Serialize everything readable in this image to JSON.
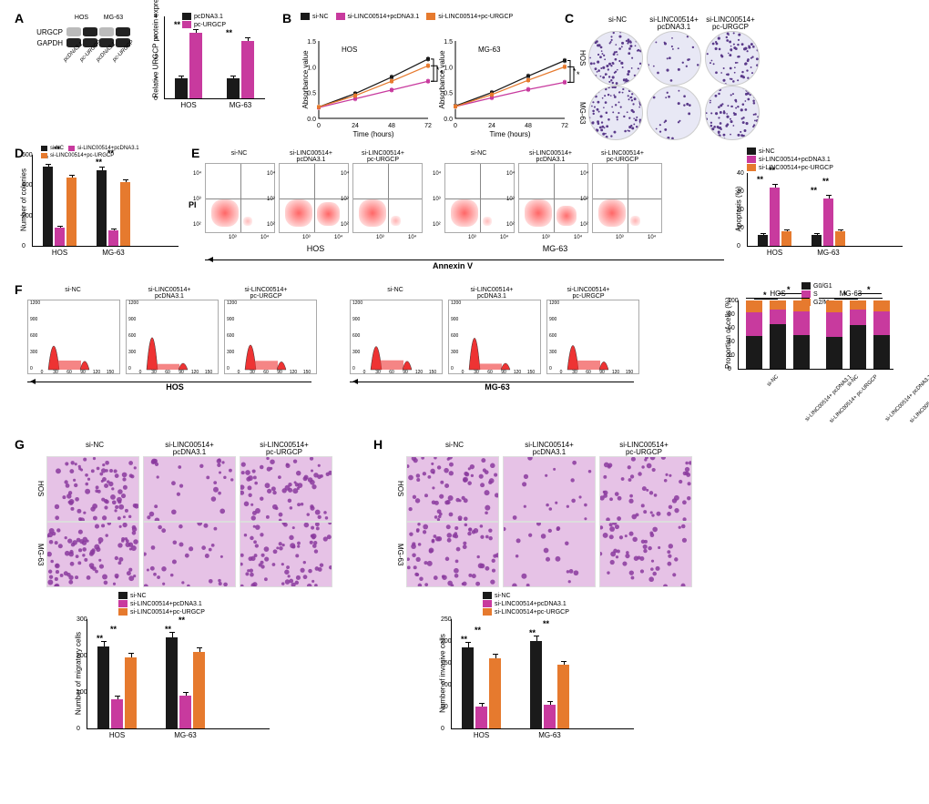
{
  "colors": {
    "siNC": "#1a1a1a",
    "siLINC_pcDNA": "#c83a9e",
    "siLINC_pcURGCP": "#e67a2e",
    "pcDNA31": "#1a1a1a",
    "pcURGCP": "#c83a9e",
    "G0G1": "#1a1a1a",
    "S": "#c83a9e",
    "G2M": "#e67a2e",
    "facs_dots": "#d04040",
    "cellcycle_fill": "#ee3333",
    "well_bg": "#e8e8f5",
    "migration_bg": "#e6c2e6"
  },
  "panels": {
    "A": {
      "blot": {
        "proteins": [
          "URGCP",
          "GAPDH"
        ],
        "cellLines": [
          "HOS",
          "MG-63"
        ],
        "conditions": [
          "pcDNA3.1",
          "pc-URGCP",
          "pcDNA3.1",
          "pc-URGCP"
        ]
      },
      "barchart": {
        "ylabel": "Relative URGCP protein expression",
        "ymax": 4,
        "yticks": [
          0,
          1,
          2,
          3,
          4
        ],
        "groups": [
          "HOS",
          "MG-63"
        ],
        "series": [
          {
            "name": "pcDNA3.1",
            "colorKey": "pcDNA31",
            "values": [
              1.0,
              1.0
            ],
            "err": [
              0.1,
              0.1
            ]
          },
          {
            "name": "pc-URGCP",
            "colorKey": "pcURGCP",
            "values": [
              3.2,
              2.8
            ],
            "err": [
              0.2,
              0.2
            ]
          }
        ],
        "sig": [
          "**",
          "**"
        ]
      }
    },
    "B": {
      "ylabel": "Absorbance value",
      "xlabel": "Time (hours)",
      "xticks": [
        0,
        24,
        48,
        72
      ],
      "ymax": 1.5,
      "yticks": [
        0,
        0.5,
        1.0,
        1.5
      ],
      "cellLines": [
        "HOS",
        "MG-63"
      ],
      "series": [
        {
          "name": "si-NC",
          "colorKey": "siNC",
          "values_HOS": [
            0.22,
            0.48,
            0.8,
            1.15
          ],
          "values_MG63": [
            0.24,
            0.5,
            0.82,
            1.12
          ]
        },
        {
          "name": "si-LINC00514+pcDNA3.1",
          "colorKey": "siLINC_pcDNA",
          "values_HOS": [
            0.21,
            0.38,
            0.55,
            0.72
          ],
          "values_MG63": [
            0.23,
            0.4,
            0.56,
            0.7
          ]
        },
        {
          "name": "si-LINC00514+pc-URGCP",
          "colorKey": "siLINC_pcURGCP",
          "values_HOS": [
            0.22,
            0.44,
            0.72,
            1.02
          ],
          "values_MG63": [
            0.23,
            0.46,
            0.74,
            1.0
          ]
        }
      ],
      "sig": [
        "*",
        "*"
      ]
    },
    "C": {
      "headers": [
        "si-NC",
        "si-LINC00514+\npcDNA3.1",
        "si-LINC00514+\npc-URGCP"
      ],
      "rows": [
        "HOS",
        "MG-63"
      ],
      "density": [
        [
          520,
          120,
          450
        ],
        [
          500,
          100,
          420
        ]
      ]
    },
    "D": {
      "ylabel": "Number of colonies",
      "ymax": 600,
      "yticks": [
        0,
        200,
        400,
        600
      ],
      "groups": [
        "HOS",
        "MG-63"
      ],
      "series": [
        {
          "name": "si-NC",
          "colorKey": "siNC",
          "values": [
            520,
            500
          ],
          "err": [
            20,
            20
          ]
        },
        {
          "name": "si-LINC00514+pcDNA3.1",
          "colorKey": "siLINC_pcDNA",
          "values": [
            120,
            100
          ],
          "err": [
            15,
            15
          ]
        },
        {
          "name": "si-LINC00514+pc-URGCP",
          "colorKey": "siLINC_pcURGCP",
          "values": [
            450,
            420
          ],
          "err": [
            20,
            20
          ]
        }
      ],
      "sig": [
        "**",
        "**",
        "**",
        "**"
      ]
    },
    "E": {
      "headers": [
        "si-NC",
        "si-LINC00514+\npcDNA3.1",
        "si-LINC00514+\npc-URGCP"
      ],
      "cellLines": [
        "HOS",
        "MG-63"
      ],
      "xlabel": "Annexin V",
      "ylabel_short": "PI",
      "barchart": {
        "ylabel": "Apoptosis (%)",
        "ymax": 40,
        "yticks": [
          0,
          10,
          20,
          30,
          40
        ],
        "groups": [
          "HOS",
          "MG-63"
        ],
        "series": [
          {
            "name": "si-NC",
            "colorKey": "siNC",
            "values": [
              6,
              6
            ],
            "err": [
              1,
              1
            ]
          },
          {
            "name": "si-LINC00514+pcDNA3.1",
            "colorKey": "siLINC_pcDNA",
            "values": [
              32,
              26
            ],
            "err": [
              2,
              2
            ]
          },
          {
            "name": "si-LINC00514+pc-URGCP",
            "colorKey": "siLINC_pcURGCP",
            "values": [
              8,
              8
            ],
            "err": [
              1,
              1
            ]
          }
        ],
        "sig": [
          "**",
          "**",
          "**",
          "**"
        ]
      }
    },
    "F": {
      "headers": [
        "si-NC",
        "si-LINC00514+\npcDNA3.1",
        "si-LINC00514+\npc-URGCP"
      ],
      "cellLines": [
        "HOS",
        "MG-63"
      ],
      "barchart": {
        "ylabel": "Proportion of cells (%)",
        "ymax": 100,
        "yticks": [
          0,
          20,
          40,
          60,
          80,
          100
        ],
        "groups": [
          "HOS",
          "MG-63"
        ],
        "subgroups": [
          "si-NC",
          "si-LINC00514+\npcDNA3.1",
          "si-LINC00514+\npc-URGCP",
          "si-NC",
          "si-LINC00514+\npcDNA3.1",
          "si-LINC00514+\npc-URGCP"
        ],
        "phases": [
          "G0/G1",
          "S",
          "G2/M"
        ],
        "phaseColors": [
          "siNC",
          "siLINC_pcDNA",
          "siLINC_pcURGCP"
        ],
        "values": [
          [
            48,
            35,
            17
          ],
          [
            65,
            22,
            13
          ],
          [
            50,
            34,
            16
          ],
          [
            47,
            36,
            17
          ],
          [
            64,
            23,
            13
          ],
          [
            49,
            35,
            16
          ]
        ],
        "sig": [
          "*",
          "*",
          "*",
          "*"
        ]
      }
    },
    "G": {
      "ylabel": "Number of migratory cells",
      "ymax": 300,
      "yticks": [
        0,
        100,
        200,
        300
      ],
      "headers": [
        "si-NC",
        "si-LINC00514+\npcDNA3.1",
        "si-LINC00514+\npc-URGCP"
      ],
      "rows": [
        "HOS",
        "MG-63"
      ],
      "density": [
        [
          225,
          80,
          195
        ],
        [
          250,
          90,
          210
        ]
      ],
      "series": [
        {
          "name": "si-NC",
          "colorKey": "siNC",
          "values": [
            225,
            250
          ],
          "err": [
            15,
            15
          ]
        },
        {
          "name": "si-LINC00514+pcDNA3.1",
          "colorKey": "siLINC_pcDNA",
          "values": [
            80,
            90
          ],
          "err": [
            10,
            10
          ]
        },
        {
          "name": "si-LINC00514+pc-URGCP",
          "colorKey": "siLINC_pcURGCP",
          "values": [
            195,
            210
          ],
          "err": [
            12,
            12
          ]
        }
      ],
      "sig": [
        "**",
        "**",
        "**",
        "**"
      ]
    },
    "H": {
      "ylabel": "Number of invasive cells",
      "ymax": 250,
      "yticks": [
        0,
        50,
        100,
        150,
        200,
        250
      ],
      "headers": [
        "si-NC",
        "si-LINC00514+\npcDNA3.1",
        "si-LINC00514+\npc-URGCP"
      ],
      "rows": [
        "HOS",
        "MG-63"
      ],
      "density": [
        [
          185,
          50,
          160
        ],
        [
          200,
          55,
          145
        ]
      ],
      "series": [
        {
          "name": "si-NC",
          "colorKey": "siNC",
          "values": [
            185,
            200
          ],
          "err": [
            12,
            12
          ]
        },
        {
          "name": "si-LINC00514+pcDNA3.1",
          "colorKey": "siLINC_pcDNA",
          "values": [
            50,
            55
          ],
          "err": [
            8,
            8
          ]
        },
        {
          "name": "si-LINC00514+pc-URGCP",
          "colorKey": "siLINC_pcURGCP",
          "values": [
            160,
            145
          ],
          "err": [
            10,
            10
          ]
        }
      ],
      "sig": [
        "**",
        "**",
        "**",
        "**"
      ]
    }
  }
}
